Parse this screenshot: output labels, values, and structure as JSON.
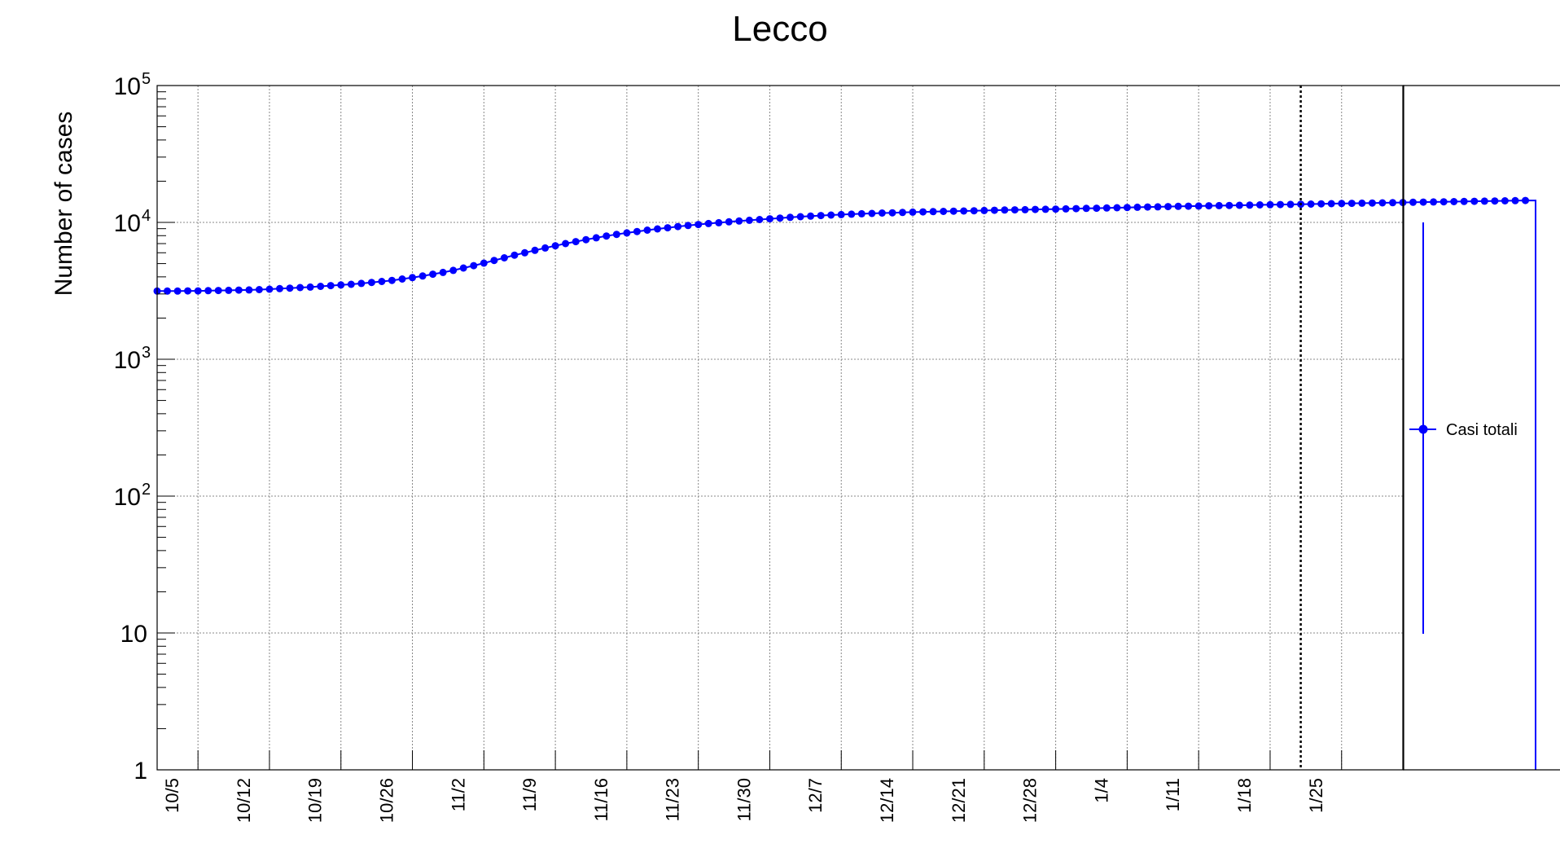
{
  "chart_data": {
    "type": "line",
    "title": "Lecco",
    "ylabel": "Number of cases",
    "xlabel": "",
    "yscale": "log",
    "ylim": [
      1,
      100000
    ],
    "xlim": [
      "2020-10-01",
      "2021-01-31"
    ],
    "grid": true,
    "legend_position": "right",
    "y_ticks": [
      {
        "value": 1,
        "base": "1",
        "exp": ""
      },
      {
        "value": 10,
        "base": "10",
        "exp": ""
      },
      {
        "value": 100,
        "base": "10",
        "exp": "2"
      },
      {
        "value": 1000,
        "base": "10",
        "exp": "3"
      },
      {
        "value": 10000,
        "base": "10",
        "exp": "4"
      },
      {
        "value": 100000,
        "base": "10",
        "exp": "5"
      }
    ],
    "x_ticks": [
      {
        "date": "2020-10-05",
        "label": "10/5"
      },
      {
        "date": "2020-10-12",
        "label": "10/12"
      },
      {
        "date": "2020-10-19",
        "label": "10/19"
      },
      {
        "date": "2020-10-26",
        "label": "10/26"
      },
      {
        "date": "2020-11-02",
        "label": "11/2"
      },
      {
        "date": "2020-11-09",
        "label": "11/9"
      },
      {
        "date": "2020-11-16",
        "label": "11/16"
      },
      {
        "date": "2020-11-23",
        "label": "11/23"
      },
      {
        "date": "2020-11-30",
        "label": "11/30"
      },
      {
        "date": "2020-12-07",
        "label": "12/7"
      },
      {
        "date": "2020-12-14",
        "label": "12/14"
      },
      {
        "date": "2020-12-21",
        "label": "12/21"
      },
      {
        "date": "2020-12-28",
        "label": "12/28"
      },
      {
        "date": "2021-01-04",
        "label": "1/4"
      },
      {
        "date": "2021-01-11",
        "label": "1/11"
      },
      {
        "date": "2021-01-18",
        "label": "1/18"
      },
      {
        "date": "2021-01-25",
        "label": "1/25"
      }
    ],
    "reference_line_date": "2021-01-21",
    "series": [
      {
        "name": "Casi totali",
        "color": "#0000ff",
        "x_start": "2020-10-01",
        "x_step_days": 1,
        "values": [
          3150,
          3150,
          3150,
          3160,
          3160,
          3170,
          3180,
          3190,
          3200,
          3210,
          3230,
          3250,
          3280,
          3310,
          3340,
          3370,
          3410,
          3450,
          3490,
          3530,
          3580,
          3640,
          3700,
          3770,
          3860,
          3950,
          4060,
          4180,
          4310,
          4460,
          4640,
          4830,
          5040,
          5270,
          5510,
          5760,
          6000,
          6250,
          6500,
          6750,
          7000,
          7240,
          7480,
          7720,
          7950,
          8170,
          8380,
          8580,
          8780,
          8960,
          9140,
          9320,
          9490,
          9650,
          9810,
          9950,
          10100,
          10230,
          10360,
          10490,
          10620,
          10760,
          10890,
          11010,
          11120,
          11220,
          11310,
          11400,
          11480,
          11560,
          11630,
          11700,
          11760,
          11820,
          11880,
          11930,
          11980,
          12030,
          12080,
          12120,
          12170,
          12220,
          12260,
          12310,
          12350,
          12390,
          12430,
          12470,
          12510,
          12550,
          12600,
          12650,
          12700,
          12750,
          12800,
          12850,
          12900,
          12950,
          13000,
          13050,
          13100,
          13140,
          13180,
          13220,
          13260,
          13300,
          13340,
          13380,
          13420,
          13460,
          13500,
          13540,
          13580,
          13620,
          13660,
          13700,
          13740,
          13780,
          13820,
          13860,
          13900,
          13940,
          13980,
          14020,
          14060,
          14100,
          14140,
          14180,
          14220,
          14260,
          14300,
          14340,
          14380,
          14420,
          14460
        ]
      }
    ]
  }
}
